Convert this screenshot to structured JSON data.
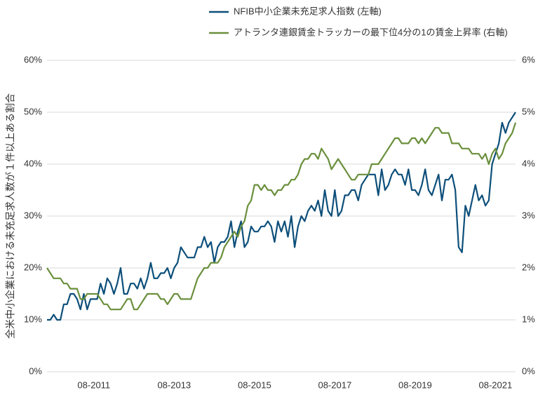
{
  "chart_data": {
    "type": "line",
    "ylabel": "全米中小企業における未充足求人数が１件以上ある割合",
    "categories": [
      null,
      null,
      null,
      null,
      null,
      null,
      null,
      null,
      null,
      null,
      null,
      null,
      null,
      null,
      "08-2011",
      null,
      null,
      null,
      null,
      null,
      null,
      null,
      null,
      null,
      null,
      null,
      null,
      null,
      null,
      null,
      null,
      null,
      null,
      null,
      null,
      null,
      null,
      null,
      "08-2013",
      null,
      null,
      null,
      null,
      null,
      null,
      null,
      null,
      null,
      null,
      null,
      null,
      null,
      null,
      null,
      null,
      null,
      null,
      null,
      null,
      null,
      null,
      null,
      "08-2015",
      null,
      null,
      null,
      null,
      null,
      null,
      null,
      null,
      null,
      null,
      null,
      null,
      null,
      null,
      null,
      null,
      null,
      null,
      null,
      null,
      null,
      null,
      null,
      "08-2017",
      null,
      null,
      null,
      null,
      null,
      null,
      null,
      null,
      null,
      null,
      null,
      null,
      null,
      null,
      null,
      null,
      null,
      null,
      null,
      null,
      null,
      null,
      null,
      "08-2019",
      null,
      null,
      null,
      null,
      null,
      null,
      null,
      null,
      null,
      null,
      null,
      null,
      null,
      null,
      null,
      null,
      null,
      null,
      null,
      null,
      null,
      null,
      null,
      "08-2021",
      null,
      null,
      null,
      null,
      null,
      null
    ],
    "series": [
      {
        "name": "NFIB中小企業未充足求人指数 (左軸)",
        "color": "#0d4f7a",
        "axis": "y",
        "values": [
          10,
          10,
          11,
          10,
          10,
          13,
          13,
          15,
          15,
          14,
          12,
          15,
          12,
          14,
          14,
          14,
          17,
          15,
          18,
          17,
          15,
          17,
          20,
          15,
          15,
          17,
          17,
          16,
          18,
          16,
          18,
          21,
          18,
          18,
          19,
          19,
          20,
          18,
          20,
          21,
          24,
          23,
          22,
          22,
          22,
          24,
          24,
          26,
          24,
          25,
          21,
          24,
          25,
          25,
          26,
          29,
          24,
          27,
          29,
          24,
          25,
          28,
          27,
          27,
          28,
          28,
          29,
          28,
          25,
          29,
          27,
          29,
          26,
          30,
          24,
          28,
          30,
          29,
          31,
          32,
          31,
          33,
          30,
          35,
          31,
          30,
          35,
          30,
          31,
          34,
          34,
          35,
          35,
          33,
          36,
          37,
          38,
          38,
          38,
          34,
          39,
          35,
          36,
          38,
          39,
          38,
          38,
          36,
          39,
          35,
          35,
          34,
          36,
          39,
          35,
          34,
          36,
          38,
          33,
          37,
          37,
          38,
          35,
          24,
          23,
          32,
          30,
          33,
          36,
          33,
          34,
          32,
          33,
          40,
          42,
          44,
          48,
          46,
          48,
          49,
          50
        ]
      },
      {
        "name": "アトランタ連銀賃金トラッカーの最下位4分の1の賃金上昇率 (右軸)",
        "color": "#6a8f3c",
        "axis": "y2",
        "values": [
          2.0,
          1.9,
          1.8,
          1.8,
          1.8,
          1.7,
          1.7,
          1.6,
          1.6,
          1.6,
          1.4,
          1.4,
          1.5,
          1.5,
          1.5,
          1.5,
          1.4,
          1.3,
          1.3,
          1.2,
          1.2,
          1.2,
          1.2,
          1.3,
          1.4,
          1.4,
          1.2,
          1.2,
          1.3,
          1.4,
          1.5,
          1.5,
          1.5,
          1.5,
          1.4,
          1.4,
          1.3,
          1.4,
          1.5,
          1.5,
          1.4,
          1.4,
          1.4,
          1.4,
          1.6,
          1.8,
          1.9,
          2.0,
          2.0,
          2.1,
          2.1,
          2.1,
          2.2,
          2.4,
          2.5,
          2.6,
          2.7,
          2.6,
          2.8,
          2.9,
          3.2,
          3.3,
          3.6,
          3.6,
          3.5,
          3.6,
          3.5,
          3.5,
          3.4,
          3.5,
          3.5,
          3.6,
          3.6,
          3.7,
          3.7,
          3.8,
          4.0,
          4.1,
          4.1,
          4.2,
          4.2,
          4.1,
          4.3,
          4.2,
          4.1,
          3.9,
          4.0,
          4.1,
          4.0,
          3.9,
          3.8,
          3.7,
          3.7,
          3.8,
          3.8,
          3.8,
          3.8,
          4.0,
          4.0,
          4.0,
          4.1,
          4.2,
          4.3,
          4.4,
          4.5,
          4.5,
          4.4,
          4.4,
          4.4,
          4.5,
          4.5,
          4.4,
          4.5,
          4.4,
          4.5,
          4.6,
          4.7,
          4.7,
          4.6,
          4.6,
          4.6,
          4.4,
          4.4,
          4.4,
          4.3,
          4.3,
          4.3,
          4.2,
          4.2,
          4.2,
          4.1,
          4.2,
          4.0,
          4.2,
          4.3,
          4.1,
          4.2,
          4.4,
          4.5,
          4.6,
          4.8
        ]
      }
    ],
    "ylim": [
      0,
      60
    ],
    "yticks": [
      {
        "value": 0,
        "label": "0%"
      },
      {
        "value": 10,
        "label": "10%"
      },
      {
        "value": 20,
        "label": "20%"
      },
      {
        "value": 30,
        "label": "30%"
      },
      {
        "value": 40,
        "label": "40%"
      },
      {
        "value": 50,
        "label": "50%"
      },
      {
        "value": 60,
        "label": "60%"
      }
    ],
    "y2lim": [
      0,
      6
    ],
    "y2ticks": [
      {
        "value": 0,
        "label": "0%"
      },
      {
        "value": 1,
        "label": "1%"
      },
      {
        "value": 2,
        "label": "2%"
      },
      {
        "value": 3,
        "label": "3%"
      },
      {
        "value": 4,
        "label": "4%"
      },
      {
        "value": 5,
        "label": "5%"
      },
      {
        "value": 6,
        "label": "6%"
      }
    ],
    "grid": true
  }
}
